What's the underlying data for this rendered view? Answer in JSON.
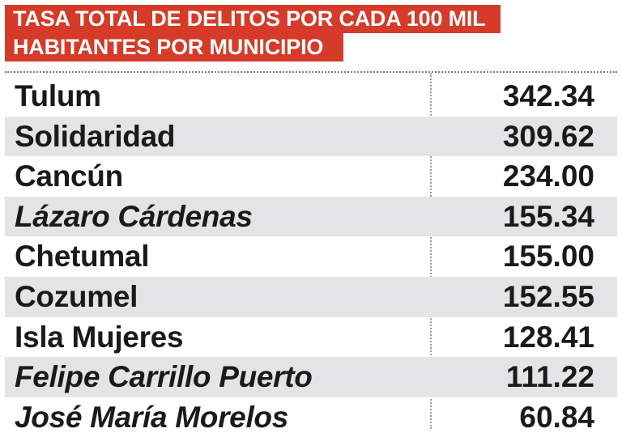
{
  "title": {
    "line1": "TASA TOTAL DE DELITOS POR CADA 100 MIL",
    "line2": "HABITANTES POR MUNICIPIO"
  },
  "colors": {
    "title_background": "#d63a28",
    "shaded_row": "#e4e4e6",
    "text": "#1a1a1a"
  },
  "chart_data": {
    "type": "table",
    "title": "TASA TOTAL DE DELITOS POR CADA 100 MIL HABITANTES POR MUNICIPIO",
    "rows": [
      {
        "municipio": "Tulum",
        "tasa": "342.34",
        "italic": false
      },
      {
        "municipio": "Solidaridad",
        "tasa": "309.62",
        "italic": false
      },
      {
        "municipio": "Cancún",
        "tasa": "234.00",
        "italic": false
      },
      {
        "municipio": "Lázaro Cárdenas",
        "tasa": "155.34",
        "italic": true
      },
      {
        "municipio": "Chetumal",
        "tasa": "155.00",
        "italic": false
      },
      {
        "municipio": "Cozumel",
        "tasa": "152.55",
        "italic": false
      },
      {
        "municipio": "Isla Mujeres",
        "tasa": "128.41",
        "italic": false
      },
      {
        "municipio": "Felipe Carrillo Puerto",
        "tasa": "111.22",
        "italic": true
      },
      {
        "municipio": "José María Morelos",
        "tasa": "60.84",
        "italic": true
      }
    ]
  }
}
